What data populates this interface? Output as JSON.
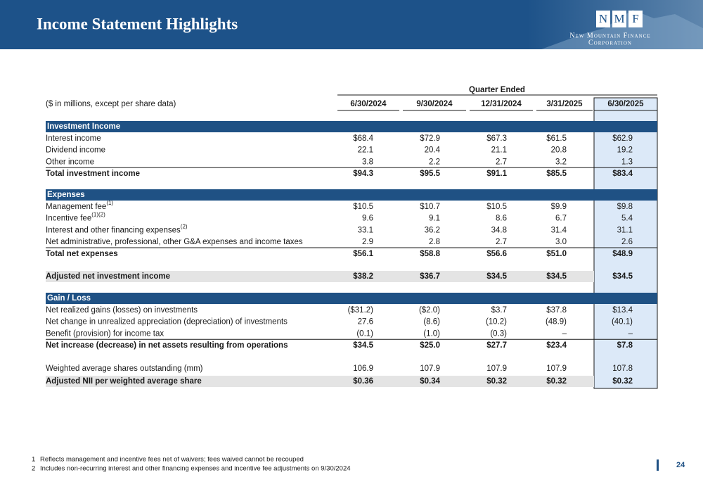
{
  "header": {
    "title": "Income Statement Highlights",
    "logo": {
      "letters": [
        "N",
        "M",
        "F"
      ],
      "line1": "New Mountain Finance",
      "line2": "Corporation"
    }
  },
  "table": {
    "group_header": "Quarter Ended",
    "unit_label": "($ in millions, except per share data)",
    "columns": [
      "6/30/2024",
      "9/30/2024",
      "12/31/2024",
      "3/31/2025",
      "6/30/2025"
    ],
    "investment_income": {
      "title": "Investment Income",
      "rows": [
        {
          "label": "Interest income",
          "values": [
            "$68.4",
            "$72.9",
            "$67.3",
            "$61.5",
            "$62.9"
          ]
        },
        {
          "label": "Dividend income",
          "values": [
            "22.1",
            "20.4",
            "21.1",
            "20.8",
            "19.2"
          ]
        },
        {
          "label": "Other income",
          "values": [
            "3.8",
            "2.2",
            "2.7",
            "3.2",
            "1.3"
          ]
        }
      ],
      "total": {
        "label": "Total investment income",
        "values": [
          "$94.3",
          "$95.5",
          "$91.1",
          "$85.5",
          "$83.4"
        ]
      }
    },
    "expenses": {
      "title": "Expenses",
      "rows": [
        {
          "label": "Management fee",
          "note": "(1)",
          "values": [
            "$10.5",
            "$10.7",
            "$10.5",
            "$9.9",
            "$9.8"
          ]
        },
        {
          "label": "Incentive fee",
          "note": "(1)(2)",
          "values": [
            "9.6",
            "9.1",
            "8.6",
            "6.7",
            "5.4"
          ]
        },
        {
          "label": "Interest and other financing expenses",
          "note": "(2)",
          "values": [
            "33.1",
            "36.2",
            "34.8",
            "31.4",
            "31.1"
          ]
        },
        {
          "label": "Net administrative, professional, other G&A expenses and income taxes",
          "values": [
            "2.9",
            "2.8",
            "2.7",
            "3.0",
            "2.6"
          ]
        }
      ],
      "total": {
        "label": "Total net expenses",
        "values": [
          "$56.1",
          "$58.8",
          "$56.6",
          "$51.0",
          "$48.9"
        ]
      }
    },
    "adjusted_nii": {
      "label": "Adjusted net investment income",
      "values": [
        "$38.2",
        "$36.7",
        "$34.5",
        "$34.5",
        "$34.5"
      ]
    },
    "gain_loss": {
      "title": "Gain / Loss",
      "rows": [
        {
          "label": "Net realized gains (losses) on investments",
          "values": [
            "($31.2)",
            "($2.0)",
            "$3.7",
            "$37.8",
            "$13.4"
          ]
        },
        {
          "label": "Net change in unrealized appreciation (depreciation) of investments",
          "values": [
            "27.6",
            "(8.6)",
            "(10.2)",
            "(48.9)",
            "(40.1)"
          ]
        },
        {
          "label": "Benefit (provision) for income tax",
          "values": [
            "(0.1)",
            "(1.0)",
            "(0.3)",
            "–",
            "–"
          ]
        }
      ],
      "total": {
        "label": "Net increase (decrease) in net assets resulting from operations",
        "values": [
          "$34.5",
          "$25.0",
          "$27.7",
          "$23.4",
          "$7.8"
        ]
      }
    },
    "shares": {
      "label": "Weighted average shares outstanding (mm)",
      "values": [
        "106.9",
        "107.9",
        "107.9",
        "107.9",
        "107.8"
      ]
    },
    "nii_per_share": {
      "label": "Adjusted NII per weighted average share",
      "values": [
        "$0.36",
        "$0.34",
        "$0.32",
        "$0.32",
        "$0.32"
      ]
    }
  },
  "footnotes": [
    {
      "number": "1",
      "text": "Reflects management and incentive fees net of waivers; fees waived cannot be recouped"
    },
    {
      "number": "2",
      "text": "Includes non-recurring interest and other financing expenses and incentive fee adjustments on 9/30/2024"
    }
  ],
  "page_number": "24"
}
